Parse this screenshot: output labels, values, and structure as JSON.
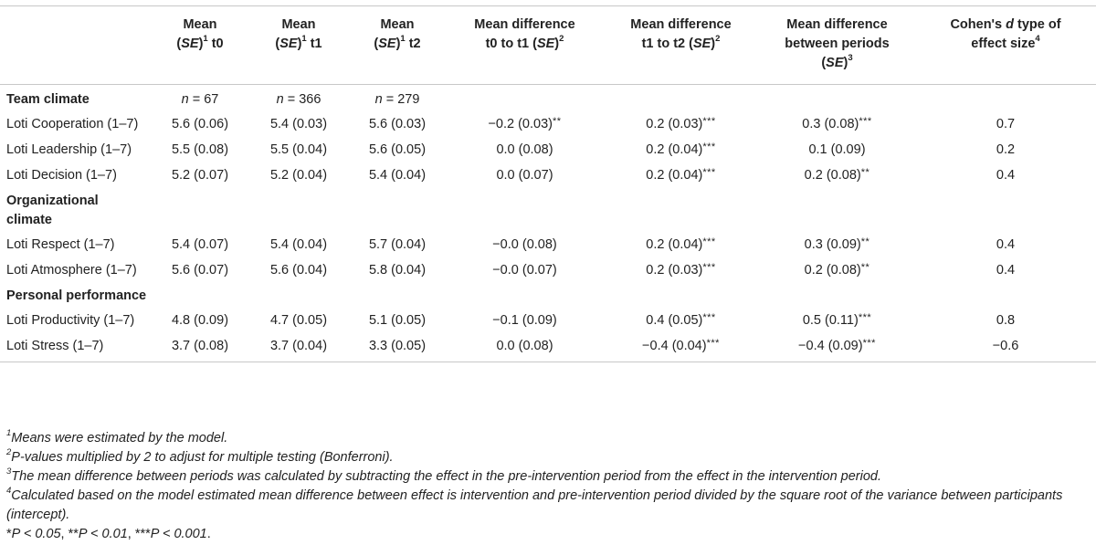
{
  "headers": {
    "col1": {
      "line1": "Mean",
      "se": "SE",
      "sup": "1",
      "tail": " t0"
    },
    "col2": {
      "line1": "Mean",
      "se": "SE",
      "sup": "1",
      "tail": " t1"
    },
    "col3": {
      "line1": "Mean",
      "se": "SE",
      "sup": "1",
      "tail": " t2"
    },
    "col4": {
      "line1": "Mean difference",
      "line2": "t0 to t1 (",
      "se": "SE",
      "close": ")",
      "sup": "2"
    },
    "col5": {
      "line1": "Mean difference",
      "line2": "t1 to t2 (",
      "se": "SE",
      "close": ")",
      "sup": "2"
    },
    "col6": {
      "line1": "Mean difference",
      "line2": "between periods",
      "line3": "(",
      "se": "SE",
      "close": ")",
      "sup": "3"
    },
    "col7": {
      "line1a": "Cohen's ",
      "d": "d",
      "line1b": " type of",
      "line2": "effect size",
      "sup": "4"
    }
  },
  "sections": [
    {
      "title": "Team climate",
      "n": [
        "67",
        "366",
        "279"
      ],
      "rows": [
        {
          "label": "Loti Cooperation (1–7)",
          "t0": "5.6 (0.06)",
          "t1": "5.4 (0.03)",
          "t2": "5.6 (0.03)",
          "d01": "−0.2 (0.03)",
          "d01s": "**",
          "d12": "0.2 (0.03)",
          "d12s": "***",
          "dp": "0.3 (0.08)",
          "dps": "***",
          "es": "0.7"
        },
        {
          "label": "Loti Leadership (1–7)",
          "t0": "5.5 (0.08)",
          "t1": "5.5 (0.04)",
          "t2": "5.6 (0.05)",
          "d01": "0.0 (0.08)",
          "d01s": "",
          "d12": "0.2 (0.04)",
          "d12s": "***",
          "dp": "0.1 (0.09)",
          "dps": "",
          "es": "0.2"
        },
        {
          "label": "Loti Decision (1–7)",
          "t0": "5.2 (0.07)",
          "t1": "5.2 (0.04)",
          "t2": "5.4 (0.04)",
          "d01": "0.0 (0.07)",
          "d01s": "",
          "d12": "0.2 (0.04)",
          "d12s": "***",
          "dp": "0.2 (0.08)",
          "dps": "**",
          "es": "0.4"
        }
      ]
    },
    {
      "title": "Organizational climate",
      "rows": [
        {
          "label": "Loti Respect (1–7)",
          "t0": "5.4 (0.07)",
          "t1": "5.4 (0.04)",
          "t2": "5.7 (0.04)",
          "d01": "−0.0 (0.08)",
          "d01s": "",
          "d12": "0.2 (0.04)",
          "d12s": "***",
          "dp": "0.3 (0.09)",
          "dps": "**",
          "es": "0.4"
        },
        {
          "label": "Loti Atmosphere (1–7)",
          "t0": "5.6 (0.07)",
          "t1": "5.6 (0.04)",
          "t2": "5.8 (0.04)",
          "d01": "−0.0 (0.07)",
          "d01s": "",
          "d12": "0.2 (0.03)",
          "d12s": "***",
          "dp": "0.2 (0.08)",
          "dps": "**",
          "es": "0.4"
        }
      ]
    },
    {
      "title": "Personal performance",
      "rows": [
        {
          "label": "Loti Productivity (1–7)",
          "t0": "4.8 (0.09)",
          "t1": "4.7 (0.05)",
          "t2": "5.1 (0.05)",
          "d01": "−0.1 (0.09)",
          "d01s": "",
          "d12": "0.4 (0.05)",
          "d12s": "***",
          "dp": "0.5 (0.11)",
          "dps": "***",
          "es": "0.8"
        },
        {
          "label": "Loti Stress (1–7)",
          "t0": "3.7 (0.08)",
          "t1": "3.7 (0.04)",
          "t2": "3.3 (0.05)",
          "d01": "0.0 (0.08)",
          "d01s": "",
          "d12": "−0.4 (0.04)",
          "d12s": "***",
          "dp": "−0.4 (0.09)",
          "dps": "***",
          "es": "−0.6"
        }
      ]
    }
  ],
  "n_label": "n",
  "footnotes": [
    {
      "num": "1",
      "text": "Means were estimated by the model."
    },
    {
      "num": "2",
      "text": "P-values multiplied by 2 to adjust for multiple testing (Bonferroni)."
    },
    {
      "num": "3",
      "text": "The mean difference between periods was calculated by subtracting the effect in the pre-intervention period from the effect in the intervention period."
    },
    {
      "num": "4",
      "text": "Calculated based on the model estimated mean difference between effect is intervention and pre-intervention period divided by the square root of the variance between participants (intercept)."
    }
  ],
  "significance": {
    "s1": "P < 0.05",
    "s2": "P < 0.01",
    "s3": "P < 0.001"
  }
}
